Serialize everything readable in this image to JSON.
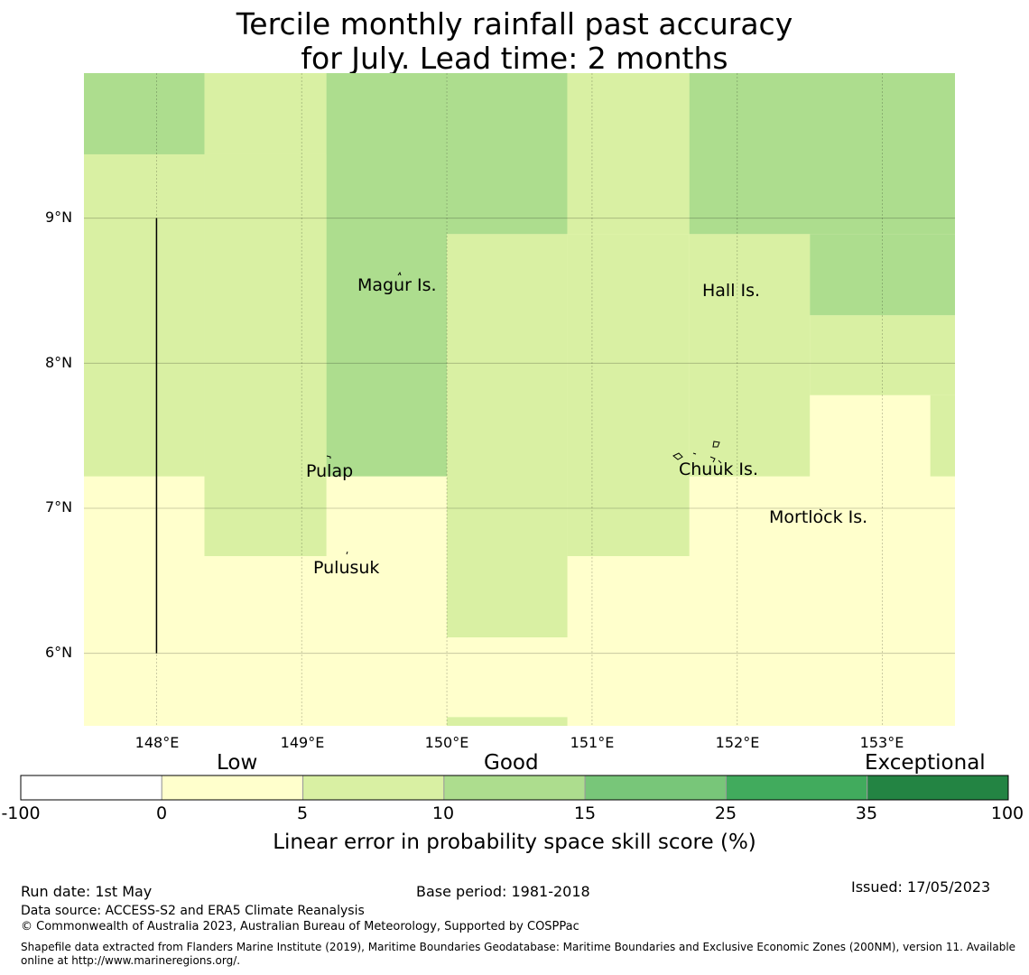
{
  "title": {
    "line1": "Tercile monthly rainfall past accuracy",
    "line2": "for July. Lead time: 2 months"
  },
  "map": {
    "lon_range": [
      147.5,
      153.5
    ],
    "lat_range": [
      5.5,
      10.0
    ],
    "lat_ticks": [
      {
        "value": 9,
        "label": "9°N"
      },
      {
        "value": 8,
        "label": "8°N"
      },
      {
        "value": 7,
        "label": "7°N"
      },
      {
        "value": 6,
        "label": "6°N"
      }
    ],
    "lon_ticks": [
      {
        "value": 148,
        "label": "148°E"
      },
      {
        "value": 149,
        "label": "149°E"
      },
      {
        "value": 150,
        "label": "150°E"
      },
      {
        "value": 151,
        "label": "151°E"
      },
      {
        "value": 152,
        "label": "152°E"
      },
      {
        "value": 153,
        "label": "153°E"
      }
    ],
    "grid_lines": true,
    "places": [
      {
        "name": "Magur Is.",
        "lon": 149.38,
        "lat": 8.52
      },
      {
        "name": "Hall Is.",
        "lon": 151.76,
        "lat": 8.48
      },
      {
        "name": "Pulap",
        "lon": 149.04,
        "lat": 7.24
      },
      {
        "name": "Chuuk Is.",
        "lon": 151.62,
        "lat": 7.25
      },
      {
        "name": "Mortlock Is.",
        "lon": 152.22,
        "lat": 6.92
      },
      {
        "name": "Pulusuk",
        "lon": 149.08,
        "lat": 6.58
      }
    ],
    "boundary_line": {
      "lon": 148.0,
      "lat_from": 6.0,
      "lat_to": 9.0
    }
  },
  "skill_cells": [
    {
      "lon0": 147.5,
      "lon1": 148.33,
      "lat0": 9.44,
      "lat1": 10.0,
      "score_bin": "10-15"
    },
    {
      "lon0": 148.33,
      "lon1": 149.17,
      "lat0": 9.44,
      "lat1": 10.0,
      "score_bin": "5-10"
    },
    {
      "lon0": 149.17,
      "lon1": 150.0,
      "lat0": 7.22,
      "lat1": 10.0,
      "score_bin": "10-15"
    },
    {
      "lon0": 150.0,
      "lon1": 150.83,
      "lat0": 8.89,
      "lat1": 10.0,
      "score_bin": "10-15"
    },
    {
      "lon0": 150.83,
      "lon1": 151.67,
      "lat0": 8.89,
      "lat1": 10.0,
      "score_bin": "5-10"
    },
    {
      "lon0": 151.67,
      "lon1": 153.5,
      "lat0": 8.89,
      "lat1": 10.0,
      "score_bin": "10-15"
    },
    {
      "lon0": 152.5,
      "lon1": 153.5,
      "lat0": 8.33,
      "lat1": 8.89,
      "score_bin": "10-15"
    },
    {
      "lon0": 147.5,
      "lon1": 148.33,
      "lat0": 7.22,
      "lat1": 9.44,
      "score_bin": "5-10"
    },
    {
      "lon0": 148.33,
      "lon1": 149.17,
      "lat0": 6.67,
      "lat1": 9.44,
      "score_bin": "5-10"
    },
    {
      "lon0": 150.0,
      "lon1": 150.83,
      "lat0": 6.11,
      "lat1": 8.89,
      "score_bin": "5-10"
    },
    {
      "lon0": 150.83,
      "lon1": 151.67,
      "lat0": 6.67,
      "lat1": 8.89,
      "score_bin": "5-10"
    },
    {
      "lon0": 151.67,
      "lon1": 152.5,
      "lat0": 7.22,
      "lat1": 8.89,
      "score_bin": "5-10"
    },
    {
      "lon0": 152.5,
      "lon1": 153.5,
      "lat0": 7.78,
      "lat1": 8.33,
      "score_bin": "5-10"
    },
    {
      "lon0": 153.33,
      "lon1": 153.5,
      "lat0": 7.22,
      "lat1": 7.78,
      "score_bin": "5-10"
    },
    {
      "lon0": 150.0,
      "lon1": 150.83,
      "lat0": 5.5,
      "lat1": 5.56,
      "score_bin": "5-10"
    }
  ],
  "colorbar": {
    "ticks": [
      "-100",
      "0",
      "5",
      "10",
      "15",
      "25",
      "35",
      "100"
    ],
    "colors": [
      "#ffffff",
      "#ffffcc",
      "#d9f0a3",
      "#addd8e",
      "#78c679",
      "#41ab5d",
      "#238443"
    ],
    "categories": [
      "Low",
      "Good",
      "Exceptional"
    ],
    "label": "Linear error in probability space skill score (%)"
  },
  "footer": {
    "run_date": "Run date: 1st May",
    "base_period": "Base period: 1981-2018",
    "issued": "Issued: 17/05/2023",
    "data_source": "Data source: ACCESS-S2 and ERA5 Climate Reanalysis",
    "copyright": "© Commonwealth of Australia 2023, Australian Bureau of Meteorology, Supported by COSPPac",
    "shapefile_note": "Shapefile data extracted from Flanders Marine Institute (2019), Maritime Boundaries Geodatabase: Maritime Boundaries and Exclusive Economic Zones (200NM), version 11. Available online at http://www.marineregions.org/."
  }
}
